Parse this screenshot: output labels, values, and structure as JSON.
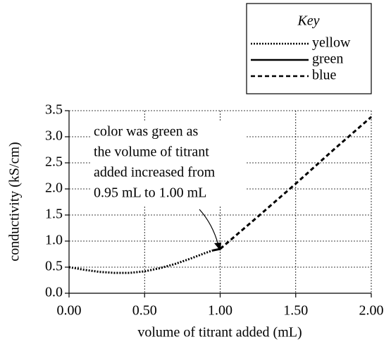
{
  "chart_data": {
    "type": "line",
    "x_label": "volume of titrant added (mL)",
    "y_label": "conductivity (kS/cm)",
    "legend_title": "Key",
    "series": [
      {
        "name": "yellow",
        "color": "#000000",
        "style": "dotted",
        "x": [
          0,
          0.1,
          0.2,
          0.3,
          0.4,
          0.5,
          0.6,
          0.7,
          0.8,
          0.9,
          0.95
        ],
        "values": [
          0.5,
          0.45,
          0.41,
          0.39,
          0.39,
          0.42,
          0.48,
          0.56,
          0.66,
          0.77,
          0.82
        ]
      },
      {
        "name": "green",
        "color": "#000000",
        "style": "solid",
        "x": [
          0.95,
          1.0
        ],
        "values": [
          0.82,
          0.85
        ]
      },
      {
        "name": "blue",
        "color": "#000000",
        "style": "dashed",
        "x": [
          1.0,
          1.25,
          1.5,
          1.75,
          2.0
        ],
        "values": [
          0.85,
          1.47,
          2.1,
          2.75,
          3.38
        ]
      }
    ],
    "annotation": [
      "color was green as",
      "the volume of titrant",
      "added increased from",
      "0.95 mL to 1.00 mL"
    ],
    "xlim": [
      0,
      2
    ],
    "ylim": [
      0,
      3.5
    ],
    "xticks": [
      {
        "value": 0,
        "label": "0.00"
      },
      {
        "value": 0.5,
        "label": "0.50"
      },
      {
        "value": 1,
        "label": "1.00"
      },
      {
        "value": 1.5,
        "label": "1.50"
      },
      {
        "value": 2,
        "label": "2.00"
      }
    ],
    "yticks": [
      {
        "value": 0,
        "label": "0.0"
      },
      0.5,
      {
        "value": 1,
        "label": "1.0"
      },
      1.5,
      {
        "value": 2,
        "label": "2.0"
      },
      2.5,
      {
        "value": 3,
        "label": "3.0"
      },
      3.5
    ],
    "grid": true
  }
}
